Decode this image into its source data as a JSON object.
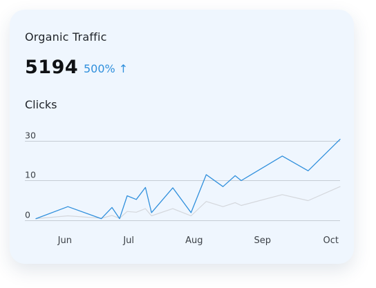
{
  "card": {
    "title": "Organic Traffic",
    "metric_value": "5194",
    "growth_value": "500%",
    "growth_arrow": "↑",
    "subtitle": "Clicks"
  },
  "colors": {
    "primary_line": "#2f8fdc",
    "secondary_line": "#d4d7dc",
    "growth_text": "#2f8fdc"
  },
  "chart_data": {
    "type": "line",
    "x_tick_labels": [
      "Jun",
      "Jul",
      "Aug",
      "Sep",
      "Oct"
    ],
    "y_tick_labels": [
      "0",
      "10",
      "30"
    ],
    "y_ticks": [
      0,
      10,
      30
    ],
    "grid": true,
    "x_range": [
      0,
      100
    ],
    "x_tick_positions": [
      9.5,
      30.5,
      52,
      74.5,
      97
    ],
    "series": [
      {
        "color": "#2f8fdc",
        "points": [
          [
            0,
            0.5
          ],
          [
            10.5,
            3.5
          ],
          [
            21.5,
            0.5
          ],
          [
            25,
            3.3
          ],
          [
            27.5,
            0.5
          ],
          [
            30,
            6.2
          ],
          [
            33,
            5.3
          ],
          [
            36,
            8.3
          ],
          [
            38,
            2
          ],
          [
            45,
            8.2
          ],
          [
            51,
            2
          ],
          [
            56,
            13
          ],
          [
            61.5,
            8.5
          ],
          [
            65.5,
            12.5
          ],
          [
            67.5,
            10
          ],
          [
            81,
            22.5
          ],
          [
            89.5,
            15
          ],
          [
            100,
            31
          ]
        ]
      },
      {
        "color": "#d4d7dc",
        "points": [
          [
            0,
            0.5
          ],
          [
            10.5,
            1.2
          ],
          [
            21.5,
            0.6
          ],
          [
            25,
            1.3
          ],
          [
            27.5,
            0.6
          ],
          [
            30,
            2.3
          ],
          [
            33,
            2.1
          ],
          [
            36,
            3
          ],
          [
            38,
            1.2
          ],
          [
            45,
            3
          ],
          [
            51,
            1.2
          ],
          [
            56,
            4.8
          ],
          [
            61.5,
            3.5
          ],
          [
            65.5,
            4.5
          ],
          [
            67.5,
            3.8
          ],
          [
            81,
            6.5
          ],
          [
            89.5,
            5
          ],
          [
            100,
            8.5
          ]
        ]
      }
    ]
  }
}
